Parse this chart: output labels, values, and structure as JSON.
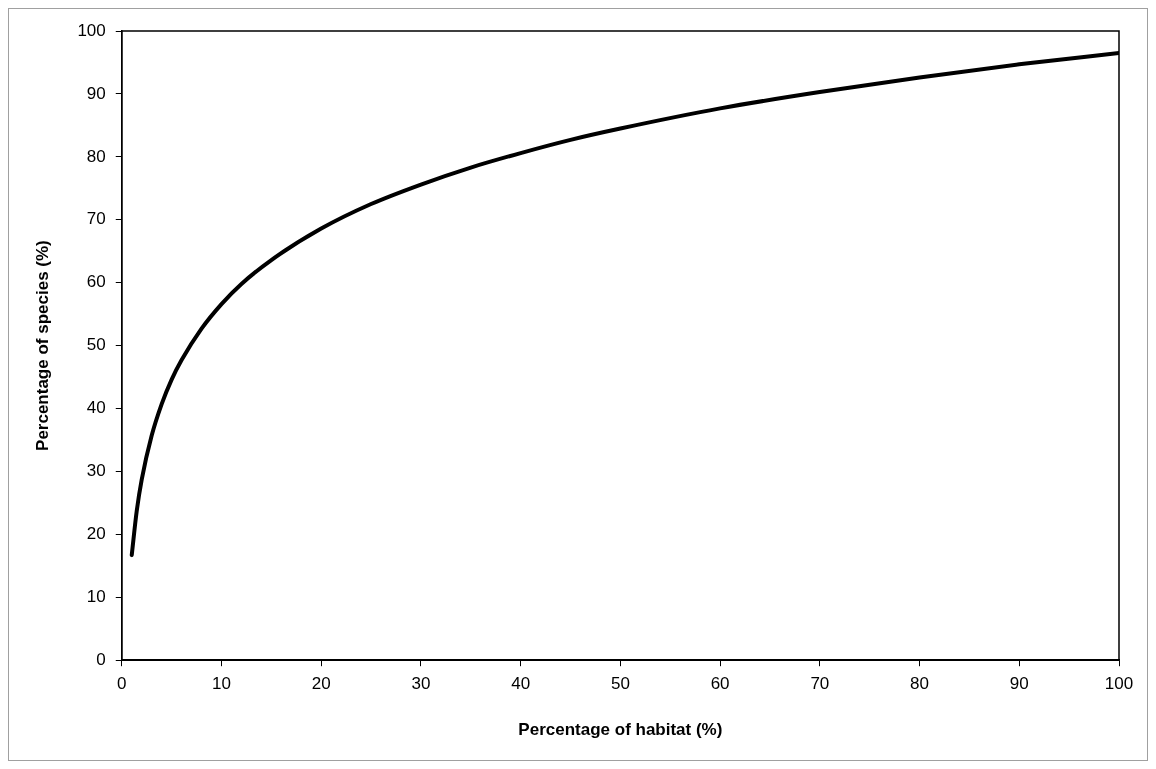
{
  "chart_data": {
    "type": "line",
    "xlabel": "Percentage of habitat (%)",
    "ylabel": "Percentage of species (%)",
    "x": [
      1,
      1.5,
      2,
      3,
      4,
      5,
      6,
      8,
      10,
      12,
      15,
      20,
      25,
      30,
      35,
      40,
      45,
      50,
      60,
      70,
      80,
      90,
      100
    ],
    "series": [
      {
        "color": "#000000",
        "values": [
          16.7,
          23.7,
          28.7,
          35.7,
          40.7,
          44.6,
          47.7,
          52.7,
          56.6,
          59.8,
          63.6,
          68.6,
          72.5,
          75.6,
          78.3,
          80.6,
          82.7,
          84.5,
          87.7,
          90.3,
          92.6,
          94.7,
          96.5
        ]
      }
    ],
    "xlim": [
      0,
      100
    ],
    "xticks": [
      0,
      10,
      20,
      30,
      40,
      50,
      60,
      70,
      80,
      90,
      100
    ],
    "ylim": [
      0,
      100
    ],
    "yticks": [
      0,
      10,
      20,
      30,
      40,
      50,
      60,
      70,
      80,
      90,
      100
    ],
    "grid": false,
    "legend": false,
    "marker": "none",
    "line_style": "solid"
  }
}
